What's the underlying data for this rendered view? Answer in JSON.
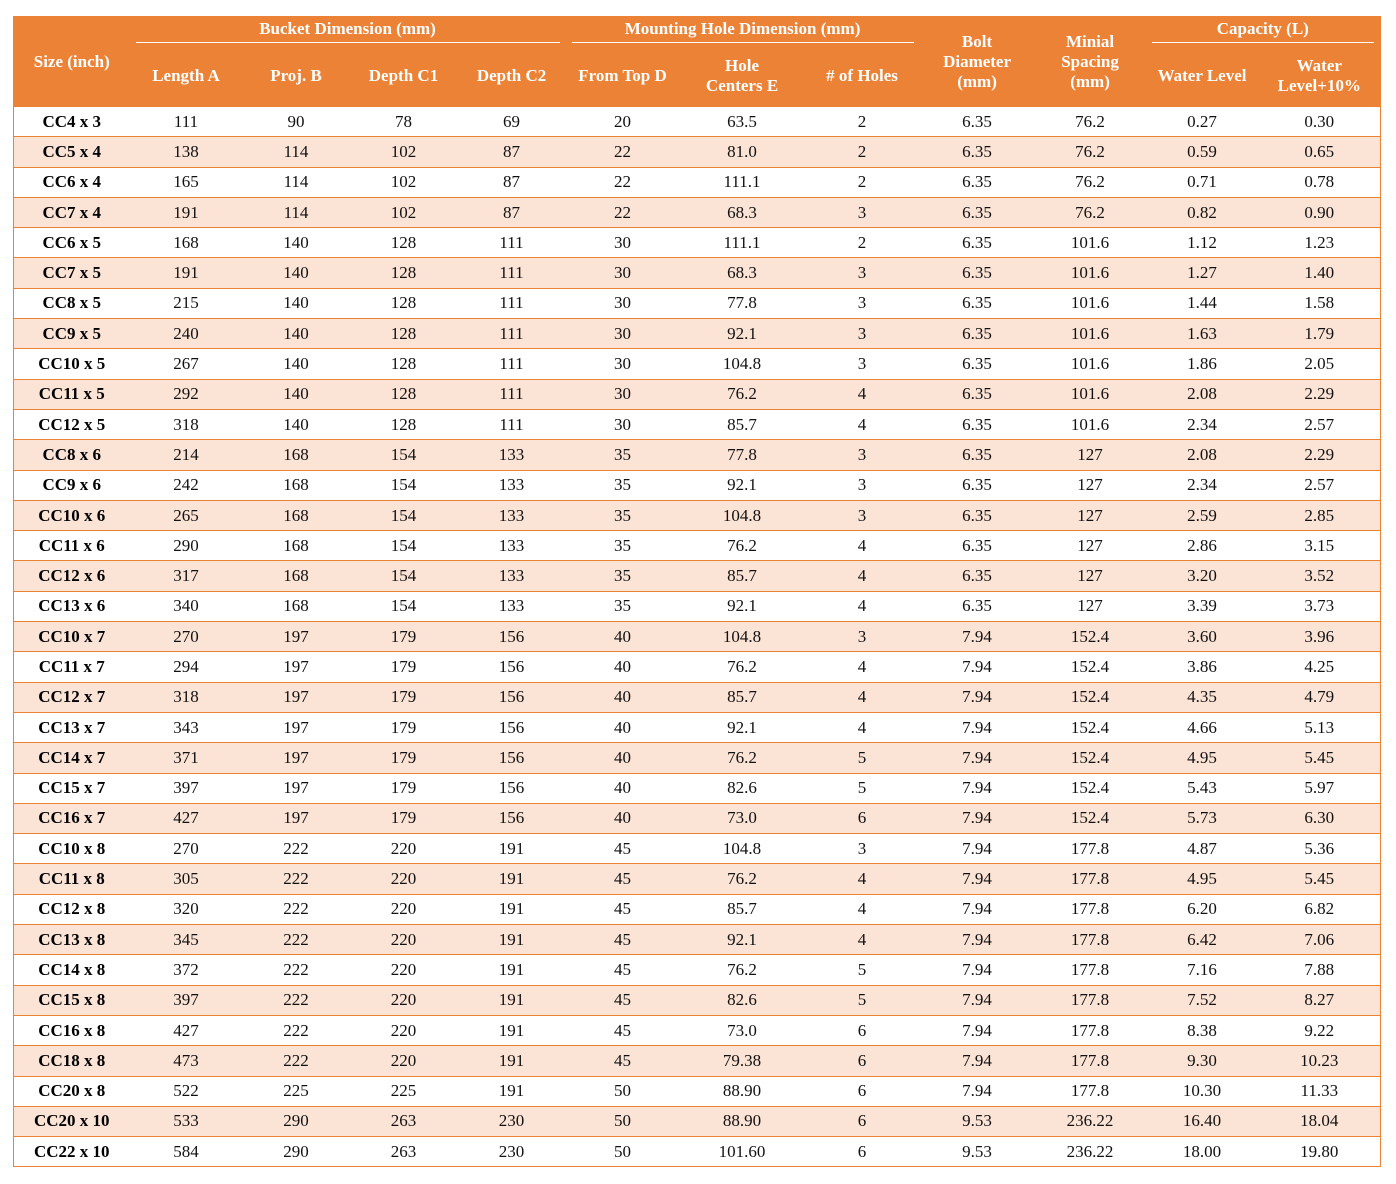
{
  "header": {
    "size": "Size (inch)",
    "bucket_group": "Bucket Dimension (mm)",
    "mounting_group": "Mounting Hole Dimension (mm)",
    "bolt": "Bolt Diameter (mm)",
    "spacing": "Minial Spacing (mm)",
    "capacity_group": "Capacity (L)",
    "length_a": "Length A",
    "proj_b": "Proj. B",
    "depth_c1": "Depth C1",
    "depth_c2": "Depth C2",
    "from_top": "From Top D",
    "hole_centers": "Hole Centers E",
    "num_holes": "# of Holes",
    "water_level": "Water Level",
    "water_level_10": "Water Level+10%"
  },
  "rows": [
    [
      "CC4 x 3",
      "111",
      "90",
      "78",
      "69",
      "20",
      "63.5",
      "2",
      "6.35",
      "76.2",
      "0.27",
      "0.30"
    ],
    [
      "CC5 x 4",
      "138",
      "114",
      "102",
      "87",
      "22",
      "81.0",
      "2",
      "6.35",
      "76.2",
      "0.59",
      "0.65"
    ],
    [
      "CC6 x 4",
      "165",
      "114",
      "102",
      "87",
      "22",
      "111.1",
      "2",
      "6.35",
      "76.2",
      "0.71",
      "0.78"
    ],
    [
      "CC7 x 4",
      "191",
      "114",
      "102",
      "87",
      "22",
      "68.3",
      "3",
      "6.35",
      "76.2",
      "0.82",
      "0.90"
    ],
    [
      "CC6 x 5",
      "168",
      "140",
      "128",
      "111",
      "30",
      "111.1",
      "2",
      "6.35",
      "101.6",
      "1.12",
      "1.23"
    ],
    [
      "CC7 x 5",
      "191",
      "140",
      "128",
      "111",
      "30",
      "68.3",
      "3",
      "6.35",
      "101.6",
      "1.27",
      "1.40"
    ],
    [
      "CC8 x 5",
      "215",
      "140",
      "128",
      "111",
      "30",
      "77.8",
      "3",
      "6.35",
      "101.6",
      "1.44",
      "1.58"
    ],
    [
      "CC9 x 5",
      "240",
      "140",
      "128",
      "111",
      "30",
      "92.1",
      "3",
      "6.35",
      "101.6",
      "1.63",
      "1.79"
    ],
    [
      "CC10 x 5",
      "267",
      "140",
      "128",
      "111",
      "30",
      "104.8",
      "3",
      "6.35",
      "101.6",
      "1.86",
      "2.05"
    ],
    [
      "CC11 x 5",
      "292",
      "140",
      "128",
      "111",
      "30",
      "76.2",
      "4",
      "6.35",
      "101.6",
      "2.08",
      "2.29"
    ],
    [
      "CC12 x 5",
      "318",
      "140",
      "128",
      "111",
      "30",
      "85.7",
      "4",
      "6.35",
      "101.6",
      "2.34",
      "2.57"
    ],
    [
      "CC8 x 6",
      "214",
      "168",
      "154",
      "133",
      "35",
      "77.8",
      "3",
      "6.35",
      "127",
      "2.08",
      "2.29"
    ],
    [
      "CC9 x 6",
      "242",
      "168",
      "154",
      "133",
      "35",
      "92.1",
      "3",
      "6.35",
      "127",
      "2.34",
      "2.57"
    ],
    [
      "CC10 x 6",
      "265",
      "168",
      "154",
      "133",
      "35",
      "104.8",
      "3",
      "6.35",
      "127",
      "2.59",
      "2.85"
    ],
    [
      "CC11 x 6",
      "290",
      "168",
      "154",
      "133",
      "35",
      "76.2",
      "4",
      "6.35",
      "127",
      "2.86",
      "3.15"
    ],
    [
      "CC12 x 6",
      "317",
      "168",
      "154",
      "133",
      "35",
      "85.7",
      "4",
      "6.35",
      "127",
      "3.20",
      "3.52"
    ],
    [
      "CC13 x 6",
      "340",
      "168",
      "154",
      "133",
      "35",
      "92.1",
      "4",
      "6.35",
      "127",
      "3.39",
      "3.73"
    ],
    [
      "CC10 x 7",
      "270",
      "197",
      "179",
      "156",
      "40",
      "104.8",
      "3",
      "7.94",
      "152.4",
      "3.60",
      "3.96"
    ],
    [
      "CC11 x 7",
      "294",
      "197",
      "179",
      "156",
      "40",
      "76.2",
      "4",
      "7.94",
      "152.4",
      "3.86",
      "4.25"
    ],
    [
      "CC12 x 7",
      "318",
      "197",
      "179",
      "156",
      "40",
      "85.7",
      "4",
      "7.94",
      "152.4",
      "4.35",
      "4.79"
    ],
    [
      "CC13 x 7",
      "343",
      "197",
      "179",
      "156",
      "40",
      "92.1",
      "4",
      "7.94",
      "152.4",
      "4.66",
      "5.13"
    ],
    [
      "CC14 x 7",
      "371",
      "197",
      "179",
      "156",
      "40",
      "76.2",
      "5",
      "7.94",
      "152.4",
      "4.95",
      "5.45"
    ],
    [
      "CC15 x 7",
      "397",
      "197",
      "179",
      "156",
      "40",
      "82.6",
      "5",
      "7.94",
      "152.4",
      "5.43",
      "5.97"
    ],
    [
      "CC16 x 7",
      "427",
      "197",
      "179",
      "156",
      "40",
      "73.0",
      "6",
      "7.94",
      "152.4",
      "5.73",
      "6.30"
    ],
    [
      "CC10 x 8",
      "270",
      "222",
      "220",
      "191",
      "45",
      "104.8",
      "3",
      "7.94",
      "177.8",
      "4.87",
      "5.36"
    ],
    [
      "CC11 x 8",
      "305",
      "222",
      "220",
      "191",
      "45",
      "76.2",
      "4",
      "7.94",
      "177.8",
      "4.95",
      "5.45"
    ],
    [
      "CC12 x 8",
      "320",
      "222",
      "220",
      "191",
      "45",
      "85.7",
      "4",
      "7.94",
      "177.8",
      "6.20",
      "6.82"
    ],
    [
      "CC13 x 8",
      "345",
      "222",
      "220",
      "191",
      "45",
      "92.1",
      "4",
      "7.94",
      "177.8",
      "6.42",
      "7.06"
    ],
    [
      "CC14 x 8",
      "372",
      "222",
      "220",
      "191",
      "45",
      "76.2",
      "5",
      "7.94",
      "177.8",
      "7.16",
      "7.88"
    ],
    [
      "CC15 x 8",
      "397",
      "222",
      "220",
      "191",
      "45",
      "82.6",
      "5",
      "7.94",
      "177.8",
      "7.52",
      "8.27"
    ],
    [
      "CC16 x 8",
      "427",
      "222",
      "220",
      "191",
      "45",
      "73.0",
      "6",
      "7.94",
      "177.8",
      "8.38",
      "9.22"
    ],
    [
      "CC18 x 8",
      "473",
      "222",
      "220",
      "191",
      "45",
      "79.38",
      "6",
      "7.94",
      "177.8",
      "9.30",
      "10.23"
    ],
    [
      "CC20 x 8",
      "522",
      "225",
      "225",
      "191",
      "50",
      "88.90",
      "6",
      "7.94",
      "177.8",
      "10.30",
      "11.33"
    ],
    [
      "CC20 x 10",
      "533",
      "290",
      "263",
      "230",
      "50",
      "88.90",
      "6",
      "9.53",
      "236.22",
      "16.40",
      "18.04"
    ],
    [
      "CC22 x 10",
      "584",
      "290",
      "263",
      "230",
      "50",
      "101.60",
      "6",
      "9.53",
      "236.22",
      "18.00",
      "19.80"
    ]
  ]
}
